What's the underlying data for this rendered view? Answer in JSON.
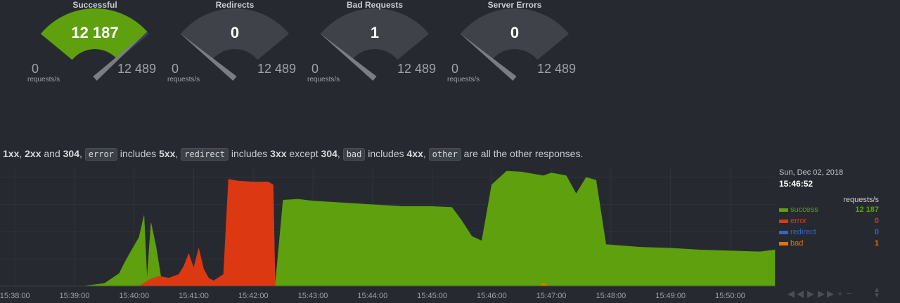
{
  "gauges": [
    {
      "title": "Successful",
      "value": "12 187",
      "min": "0",
      "max": "12 489",
      "unit": "requests/s",
      "fraction": 0.976,
      "color": "#5ea00d"
    },
    {
      "title": "Redirects",
      "value": "0",
      "min": "0",
      "max": "12 489",
      "unit": "requests/s",
      "fraction": 0,
      "color": "#5ea00d"
    },
    {
      "title": "Bad Requests",
      "value": "1",
      "min": "0",
      "max": "12 489",
      "unit": "requests/s",
      "fraction": 0,
      "color": "#5ea00d"
    },
    {
      "title": "Server Errors",
      "value": "0",
      "min": "0",
      "max": "12 489",
      "unit": "requests/s",
      "fraction": 0,
      "color": "#5ea00d"
    }
  ],
  "description": {
    "t1": "1xx",
    "t2": ", ",
    "t3": "2xx",
    "t4": " and ",
    "t5": "304",
    "t6": ", ",
    "c1": "error",
    "t7": " includes ",
    "t8": "5xx",
    "t9": ", ",
    "c2": "redirect",
    "t10": " includes ",
    "t11": "3xx",
    "t12": " except ",
    "t13": "304",
    "t14": ", ",
    "c3": "bad",
    "t15": " includes ",
    "t16": "4xx",
    "t17": ", ",
    "c4": "other",
    "t18": " are all the other responses."
  },
  "legend": {
    "date": "Sun, Dec 02, 2018",
    "time": "15:46:52",
    "units": "requests/s",
    "items": [
      {
        "name": "success",
        "value": "12 187",
        "color": "#5ea00d"
      },
      {
        "name": "error",
        "value": "0",
        "color": "#dc3912"
      },
      {
        "name": "redirect",
        "value": "0",
        "color": "#3366cc"
      },
      {
        "name": "bad",
        "value": "1",
        "color": "#e67300"
      }
    ]
  },
  "nav": {
    "rewind": "◀◀",
    "play": "▶",
    "forward": "▶▶",
    "zoom_in": "+",
    "zoom_out": "−"
  },
  "chart_data": {
    "type": "area",
    "x_ticks": [
      "15:38:00",
      "15:39:00",
      "15:40:00",
      "15:41:00",
      "15:42:00",
      "15:43:00",
      "15:44:00",
      "15:45:00",
      "15:46:00",
      "15:47:00",
      "15:48:00",
      "15:49:00",
      "15:50:00"
    ],
    "x_start": "15:37:45",
    "x_end": "15:50:45",
    "ylim": [
      0,
      13000
    ],
    "series": [
      {
        "name": "success",
        "color": "#5ea00d",
        "points": [
          [
            "15:39:10",
            0
          ],
          [
            "15:39:15",
            100
          ],
          [
            "15:39:30",
            300
          ],
          [
            "15:39:45",
            1400
          ],
          [
            "15:39:50",
            2500
          ],
          [
            "15:39:55",
            3500
          ],
          [
            "15:40:05",
            5400
          ],
          [
            "15:40:10",
            7800
          ],
          [
            "15:40:13",
            800
          ],
          [
            "15:40:17",
            7000
          ],
          [
            "15:40:22",
            4400
          ],
          [
            "15:40:27",
            1000
          ],
          [
            "15:40:30",
            0
          ]
        ]
      },
      {
        "name": "error",
        "color": "#dc3912",
        "points": [
          [
            "15:40:05",
            0
          ],
          [
            "15:40:15",
            700
          ],
          [
            "15:40:25",
            1100
          ],
          [
            "15:40:35",
            900
          ],
          [
            "15:40:45",
            1300
          ],
          [
            "15:40:50",
            2200
          ],
          [
            "15:40:55",
            3600
          ],
          [
            "15:41:00",
            2000
          ],
          [
            "15:41:05",
            4200
          ],
          [
            "15:41:10",
            1900
          ],
          [
            "15:41:15",
            900
          ],
          [
            "15:41:20",
            600
          ],
          [
            "15:41:30",
            1300
          ],
          [
            "15:41:35",
            11800
          ],
          [
            "15:41:45",
            11600
          ],
          [
            "15:42:00",
            11500
          ],
          [
            "15:42:15",
            11500
          ],
          [
            "15:42:20",
            11200
          ],
          [
            "15:42:22",
            0
          ]
        ]
      },
      {
        "name": "success",
        "color": "#5ea00d",
        "points": [
          [
            "15:42:22",
            0
          ],
          [
            "15:42:30",
            9500
          ],
          [
            "15:42:45",
            9600
          ],
          [
            "15:43:00",
            9400
          ],
          [
            "15:43:30",
            9200
          ],
          [
            "15:44:00",
            9000
          ],
          [
            "15:44:30",
            8800
          ],
          [
            "15:45:00",
            8800
          ],
          [
            "15:45:20",
            8700
          ],
          [
            "15:45:30",
            7200
          ],
          [
            "15:45:40",
            5500
          ],
          [
            "15:45:50",
            5000
          ],
          [
            "15:46:00",
            11200
          ],
          [
            "15:46:15",
            12700
          ],
          [
            "15:46:30",
            12600
          ],
          [
            "15:46:52",
            12187
          ],
          [
            "15:47:00",
            12500
          ],
          [
            "15:47:15",
            12200
          ],
          [
            "15:47:25",
            10200
          ],
          [
            "15:47:35",
            12000
          ],
          [
            "15:47:45",
            11700
          ],
          [
            "15:47:55",
            4600
          ],
          [
            "15:48:30",
            4300
          ],
          [
            "15:49:00",
            4200
          ],
          [
            "15:49:30",
            4000
          ],
          [
            "15:50:00",
            3900
          ],
          [
            "15:50:30",
            3800
          ],
          [
            "15:50:45",
            4000
          ],
          [
            "15:50:45",
            0
          ]
        ]
      },
      {
        "name": "bad",
        "color": "#e67300",
        "points": [
          [
            "15:46:52",
            1
          ]
        ]
      }
    ]
  }
}
